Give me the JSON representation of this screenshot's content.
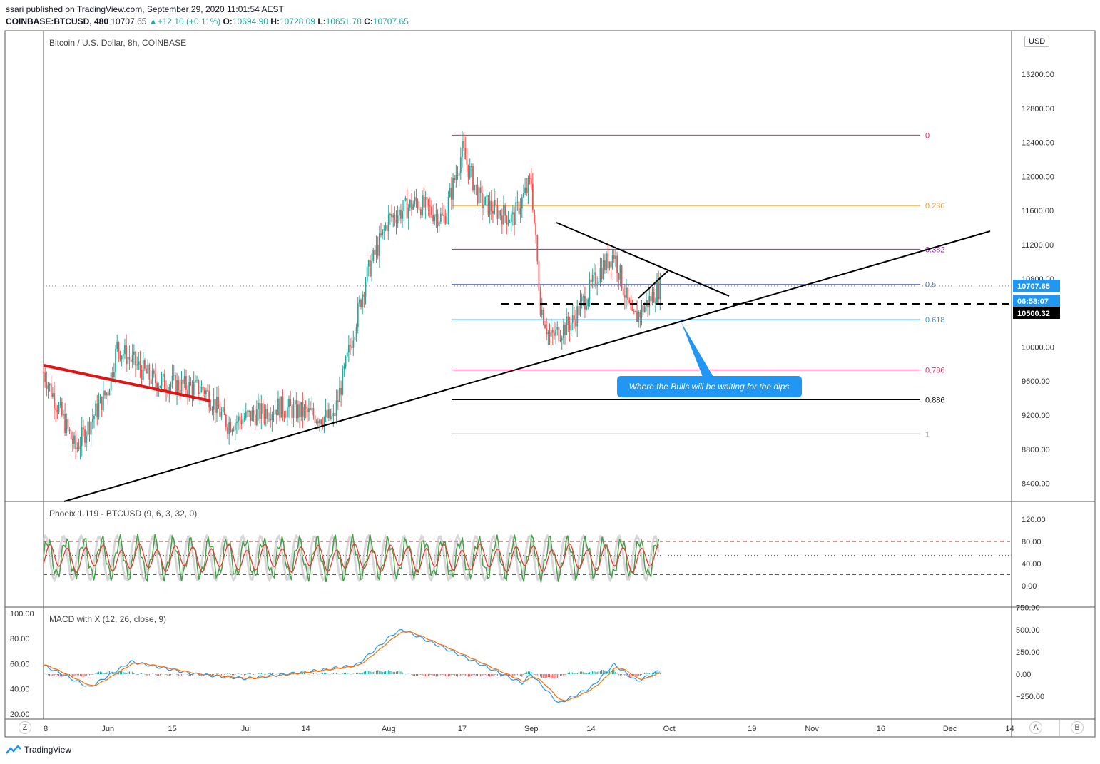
{
  "header": {
    "publisher_line": "ssari published on TradingView.com, September 29, 2020 11:01:54 AEST",
    "symbol": "COINBASE:BTCUSD, 480",
    "last": "10707.65",
    "change": "+12.10 (+0.11%)",
    "o_label": "O:",
    "o_value": "10694.90",
    "h_label": "H:",
    "h_value": "10728.09",
    "l_label": "L:",
    "l_value": "10651.78",
    "c_label": "C:",
    "c_value": "10707.65",
    "arrow": "▲"
  },
  "main_pane": {
    "title": "Bitcoin / U.S. Dollar, 8h, COINBASE",
    "currency_button": "USD",
    "price_tag": "10707.65",
    "countdown_tag": "06:58:07",
    "level_tag": "10500.32",
    "annotation": "Where the Bulls will be waiting for the dips"
  },
  "phoeix_pane": {
    "title": "Phoeix 1.119 - BTCUSD (9, 6, 3, 32, 0)"
  },
  "macd_pane": {
    "title": "MACD with X (12, 26, close, 9)"
  },
  "bottom_bar": {
    "z_button": "Z",
    "a_button": "A",
    "b_button": "B",
    "brand": "TradingView"
  },
  "colors": {
    "up": "#26a69a",
    "down": "#ef5350",
    "accent": "#2196f3",
    "fib_0": "#e91e63",
    "fib_236": "#f59e0b",
    "fib_382": "#9c27b0",
    "fib_05": "#5c6bc0",
    "fib_618": "#2196f3",
    "fib_786": "#e91e63",
    "fib_886": "#000000",
    "fib_1": "#9e9e9e"
  },
  "chart_data": [
    {
      "type": "candlestick",
      "title": "Bitcoin / U.S. Dollar, 8h, COINBASE",
      "ylim": [
        8200,
        13600
      ],
      "y_ticks": [
        "13200.00",
        "12800.00",
        "12400.00",
        "12000.00",
        "11600.00",
        "11200.00",
        "10800.00",
        "10000.00",
        "9600.00",
        "9200.00",
        "8800.00",
        "8400.00"
      ],
      "x_ticks": [
        "8",
        "Jun",
        "15",
        "Jul",
        "14",
        "Aug",
        "17",
        "Sep",
        "14",
        "Oct",
        "19",
        "Nov",
        "16",
        "Dec",
        "14"
      ],
      "waypoints": [
        [
          "2020-05-18",
          9700
        ],
        [
          "2020-05-25",
          8800
        ],
        [
          "2020-06-01",
          9500
        ],
        [
          "2020-06-03",
          10000
        ],
        [
          "2020-06-11",
          9600
        ],
        [
          "2020-06-22",
          9500
        ],
        [
          "2020-06-27",
          9100
        ],
        [
          "2020-07-08",
          9300
        ],
        [
          "2020-07-20",
          9150
        ],
        [
          "2020-07-27",
          10800
        ],
        [
          "2020-08-01",
          11500
        ],
        [
          "2020-08-07",
          11700
        ],
        [
          "2020-08-13",
          11500
        ],
        [
          "2020-08-17",
          12300
        ],
        [
          "2020-08-21",
          11700
        ],
        [
          "2020-08-28",
          11500
        ],
        [
          "2020-09-01",
          11950
        ],
        [
          "2020-09-03",
          10500
        ],
        [
          "2020-09-05",
          10100
        ],
        [
          "2020-09-10",
          10300
        ],
        [
          "2020-09-16",
          10900
        ],
        [
          "2020-09-19",
          11100
        ],
        [
          "2020-09-23",
          10300
        ],
        [
          "2020-09-29",
          10707.65
        ]
      ],
      "fib_levels": [
        {
          "label": "0",
          "price": 12486
        },
        {
          "label": "0.236",
          "price": 11659
        },
        {
          "label": "0.382",
          "price": 11147
        },
        {
          "label": "0.5",
          "price": 10734
        },
        {
          "label": "0.618",
          "price": 10320
        },
        {
          "label": "0.786",
          "price": 9731
        },
        {
          "label": "0.886",
          "price": 9380
        },
        {
          "label": "1",
          "price": 8980
        }
      ],
      "horizontal_level": 10500.32,
      "last_price": 10707.65
    },
    {
      "type": "line",
      "title": "Phoeix 1.119 - BTCUSD (9, 6, 3, 32, 0)",
      "ylim": [
        -10,
        130
      ],
      "y_ticks": [
        "120.00",
        "80.00",
        "40.00",
        "0.00"
      ],
      "levels": [
        80,
        20,
        55
      ]
    },
    {
      "type": "line",
      "title": "MACD with X (12, 26, close, 9)",
      "ylim_left": [
        20,
        100
      ],
      "y_ticks_left": [
        "100.00",
        "80.00",
        "60.00",
        "40.00",
        "20.00"
      ],
      "ylim_right": [
        -400,
        750
      ],
      "y_ticks_right": [
        "750.00",
        "500.00",
        "250.00",
        "0.00",
        "−250.00"
      ],
      "macd_waypoints": [
        [
          "2020-05-18",
          100
        ],
        [
          "2020-05-28",
          -150
        ],
        [
          "2020-06-06",
          140
        ],
        [
          "2020-06-20",
          0
        ],
        [
          "2020-07-01",
          -50
        ],
        [
          "2020-07-15",
          30
        ],
        [
          "2020-07-25",
          100
        ],
        [
          "2020-08-02",
          450
        ],
        [
          "2020-08-04",
          500
        ],
        [
          "2020-08-15",
          250
        ],
        [
          "2020-08-30",
          -100
        ],
        [
          "2020-09-01",
          0
        ],
        [
          "2020-09-07",
          -330
        ],
        [
          "2020-09-14",
          -150
        ],
        [
          "2020-09-19",
          110
        ],
        [
          "2020-09-24",
          -80
        ],
        [
          "2020-09-29",
          40
        ]
      ]
    }
  ]
}
